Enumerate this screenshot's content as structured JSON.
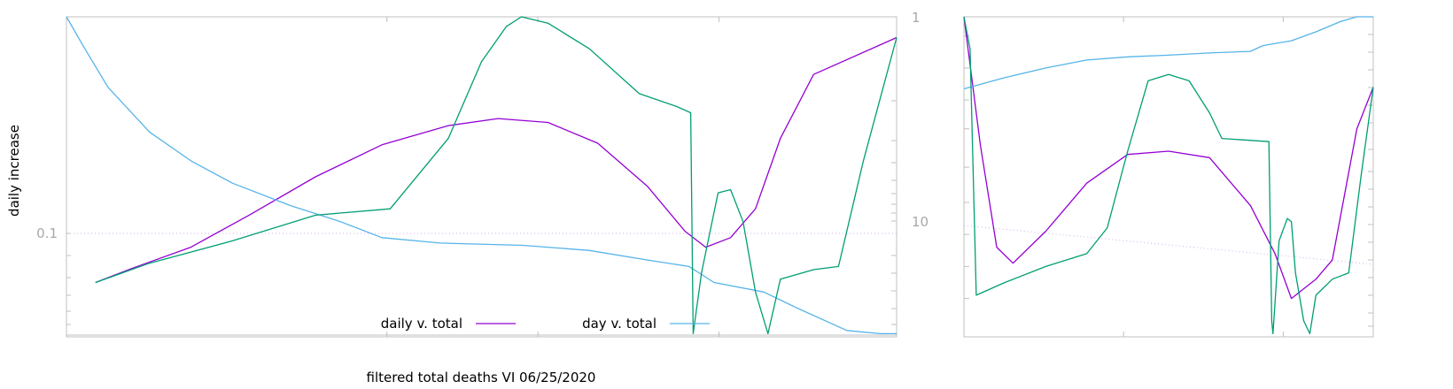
{
  "chart_data": [
    {
      "type": "line",
      "ylabel": "daily increase",
      "xlabel": "filtered total deaths VI 06/25/2020",
      "left_axis": {
        "scale": "log",
        "ticks": [
          {
            "value": 0.1,
            "label": "0.1"
          }
        ]
      },
      "right_axis": {
        "scale": "log",
        "reversed": true,
        "ticks": [
          {
            "value": 1,
            "label": "1"
          },
          {
            "value": 10,
            "label": "10"
          }
        ]
      },
      "grid": "horizontal dotted line at 0.1",
      "legend_position": "bottom-center",
      "series": [
        {
          "name": "daily v. total",
          "color": "#9400d3",
          "points": [
            [
              0.035,
              0.83
            ],
            [
              0.08,
              0.785
            ],
            [
              0.15,
              0.72
            ],
            [
              0.22,
              0.62
            ],
            [
              0.3,
              0.5
            ],
            [
              0.38,
              0.4
            ],
            [
              0.46,
              0.34
            ],
            [
              0.52,
              0.318
            ],
            [
              0.58,
              0.33
            ],
            [
              0.64,
              0.395
            ],
            [
              0.7,
              0.53
            ],
            [
              0.745,
              0.67
            ],
            [
              0.77,
              0.72
            ],
            [
              0.8,
              0.69
            ],
            [
              0.83,
              0.6
            ],
            [
              0.86,
              0.38
            ],
            [
              0.9,
              0.18
            ],
            [
              1.0,
              0.065
            ]
          ]
        },
        {
          "name": "day v. total",
          "color": "#56b4e9",
          "points": [
            [
              0.0,
              0.0
            ],
            [
              0.02,
              0.09
            ],
            [
              0.05,
              0.22
            ],
            [
              0.1,
              0.36
            ],
            [
              0.15,
              0.45
            ],
            [
              0.2,
              0.52
            ],
            [
              0.27,
              0.59
            ],
            [
              0.33,
              0.64
            ],
            [
              0.38,
              0.69
            ],
            [
              0.45,
              0.707
            ],
            [
              0.55,
              0.714
            ],
            [
              0.63,
              0.73
            ],
            [
              0.7,
              0.76
            ],
            [
              0.75,
              0.78
            ],
            [
              0.78,
              0.83
            ],
            [
              0.84,
              0.86
            ],
            [
              0.88,
              0.91
            ],
            [
              0.94,
              0.98
            ],
            [
              0.98,
              0.99
            ],
            [
              1.0,
              0.99
            ]
          ]
        },
        {
          "color": "#009e73",
          "points": [
            [
              0.035,
              0.83
            ],
            [
              0.1,
              0.77
            ],
            [
              0.2,
              0.7
            ],
            [
              0.3,
              0.62
            ],
            [
              0.39,
              0.6
            ],
            [
              0.46,
              0.38
            ],
            [
              0.5,
              0.14
            ],
            [
              0.53,
              0.03
            ],
            [
              0.548,
              0.0
            ],
            [
              0.58,
              0.02
            ],
            [
              0.63,
              0.1
            ],
            [
              0.69,
              0.24
            ],
            [
              0.735,
              0.28
            ],
            [
              0.752,
              0.3
            ],
            [
              0.755,
              0.99
            ],
            [
              0.765,
              0.8
            ],
            [
              0.785,
              0.55
            ],
            [
              0.8,
              0.54
            ],
            [
              0.815,
              0.64
            ],
            [
              0.83,
              0.86
            ],
            [
              0.845,
              0.99
            ],
            [
              0.86,
              0.82
            ],
            [
              0.9,
              0.79
            ],
            [
              0.93,
              0.78
            ],
            [
              0.96,
              0.45
            ],
            [
              1.0,
              0.065
            ]
          ]
        }
      ]
    },
    {
      "type": "line",
      "grid": "none",
      "series": [
        {
          "color": "#9400d3",
          "points": [
            [
              0.0,
              0.0
            ],
            [
              0.04,
              0.4
            ],
            [
              0.08,
              0.72
            ],
            [
              0.12,
              0.77
            ],
            [
              0.2,
              0.67
            ],
            [
              0.3,
              0.52
            ],
            [
              0.4,
              0.43
            ],
            [
              0.5,
              0.42
            ],
            [
              0.6,
              0.44
            ],
            [
              0.7,
              0.59
            ],
            [
              0.76,
              0.74
            ],
            [
              0.8,
              0.88
            ],
            [
              0.86,
              0.82
            ],
            [
              0.9,
              0.76
            ],
            [
              0.96,
              0.35
            ],
            [
              1.0,
              0.22
            ]
          ]
        },
        {
          "color": "#56b4e9",
          "points": [
            [
              0.0,
              0.225
            ],
            [
              0.1,
              0.19
            ],
            [
              0.2,
              0.16
            ],
            [
              0.3,
              0.135
            ],
            [
              0.4,
              0.125
            ],
            [
              0.5,
              0.12
            ],
            [
              0.6,
              0.113
            ],
            [
              0.7,
              0.108
            ],
            [
              0.73,
              0.09
            ],
            [
              0.8,
              0.075
            ],
            [
              0.86,
              0.047
            ],
            [
              0.92,
              0.015
            ],
            [
              0.96,
              0.0
            ],
            [
              1.0,
              0.0
            ]
          ]
        },
        {
          "color": "#009e73",
          "points": [
            [
              0.0,
              0.0
            ],
            [
              0.015,
              0.1
            ],
            [
              0.03,
              0.87
            ],
            [
              0.1,
              0.83
            ],
            [
              0.2,
              0.78
            ],
            [
              0.3,
              0.74
            ],
            [
              0.35,
              0.66
            ],
            [
              0.4,
              0.42
            ],
            [
              0.45,
              0.2
            ],
            [
              0.5,
              0.18
            ],
            [
              0.55,
              0.2
            ],
            [
              0.6,
              0.3
            ],
            [
              0.63,
              0.38
            ],
            [
              0.745,
              0.39
            ],
            [
              0.752,
              0.95
            ],
            [
              0.755,
              0.99
            ],
            [
              0.77,
              0.7
            ],
            [
              0.79,
              0.63
            ],
            [
              0.8,
              0.64
            ],
            [
              0.81,
              0.8
            ],
            [
              0.83,
              0.95
            ],
            [
              0.845,
              0.99
            ],
            [
              0.86,
              0.87
            ],
            [
              0.9,
              0.82
            ],
            [
              0.94,
              0.8
            ],
            [
              0.97,
              0.5
            ],
            [
              1.0,
              0.22
            ]
          ]
        }
      ]
    }
  ]
}
